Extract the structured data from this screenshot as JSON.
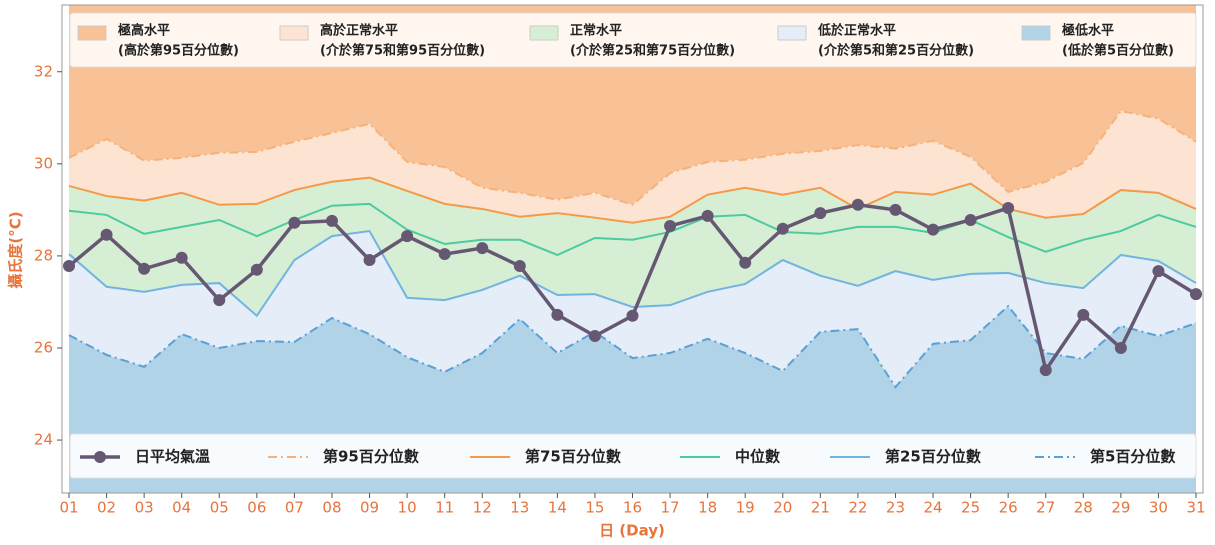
{
  "chart_data": {
    "type": "line",
    "xlabel": "日 (Day)",
    "ylabel": "攝氏度(°C)",
    "categories": [
      "01",
      "02",
      "03",
      "04",
      "05",
      "06",
      "07",
      "08",
      "09",
      "10",
      "11",
      "12",
      "13",
      "14",
      "15",
      "16",
      "17",
      "18",
      "19",
      "20",
      "21",
      "22",
      "23",
      "24",
      "25",
      "26",
      "27",
      "28",
      "29",
      "30",
      "31"
    ],
    "ylim": [
      22.85,
      33.45
    ],
    "yticks": [
      24,
      26,
      28,
      30,
      32
    ],
    "series": [
      {
        "name": "日平均氣溫",
        "color": "#665873",
        "dash": "solid",
        "marker": true,
        "values": [
          27.78,
          28.46,
          27.72,
          27.96,
          27.04,
          27.7,
          28.72,
          28.76,
          27.91,
          28.43,
          28.04,
          28.17,
          27.78,
          26.72,
          26.26,
          26.7,
          28.65,
          28.87,
          27.85,
          28.59,
          28.93,
          29.11,
          29.0,
          28.57,
          28.78,
          29.04,
          25.52,
          26.72,
          26.0,
          27.67,
          27.17
        ]
      },
      {
        "name": "第95百分位數",
        "color": "#f5b27a",
        "dash": "dashdot",
        "marker": false,
        "values": [
          30.13,
          30.54,
          30.07,
          30.13,
          30.24,
          30.26,
          30.48,
          30.67,
          30.87,
          30.04,
          29.93,
          29.48,
          29.37,
          29.22,
          29.37,
          29.11,
          29.8,
          30.04,
          30.09,
          30.22,
          30.28,
          30.41,
          30.33,
          30.5,
          30.15,
          29.39,
          29.61,
          30.02,
          31.15,
          30.98,
          30.48
        ]
      },
      {
        "name": "第75百分位數",
        "color": "#f39a4a",
        "dash": "solid",
        "marker": false,
        "values": [
          29.52,
          29.3,
          29.2,
          29.37,
          29.11,
          29.13,
          29.43,
          29.61,
          29.7,
          29.41,
          29.13,
          29.02,
          28.85,
          28.93,
          28.83,
          28.72,
          28.85,
          29.33,
          29.48,
          29.33,
          29.48,
          29.02,
          29.39,
          29.33,
          29.57,
          29.02,
          28.83,
          28.91,
          29.43,
          29.37,
          29.02
        ]
      },
      {
        "name": "中位數",
        "color": "#4ccaa0",
        "dash": "solid",
        "marker": false,
        "values": [
          28.98,
          28.89,
          28.48,
          28.63,
          28.78,
          28.43,
          28.78,
          29.09,
          29.13,
          28.57,
          28.26,
          28.35,
          28.35,
          28.02,
          28.39,
          28.35,
          28.52,
          28.85,
          28.89,
          28.52,
          28.48,
          28.63,
          28.63,
          28.5,
          28.78,
          28.41,
          28.09,
          28.35,
          28.54,
          28.89,
          28.63
        ]
      },
      {
        "name": "第25百分位數",
        "color": "#72b4e0",
        "dash": "solid",
        "marker": false,
        "values": [
          28.04,
          27.33,
          27.22,
          27.37,
          27.41,
          26.7,
          27.91,
          28.43,
          28.54,
          27.09,
          27.04,
          27.26,
          27.57,
          27.15,
          27.17,
          26.89,
          26.93,
          27.22,
          27.39,
          27.91,
          27.57,
          27.35,
          27.67,
          27.48,
          27.61,
          27.63,
          27.41,
          27.3,
          28.02,
          27.89,
          27.41
        ]
      },
      {
        "name": "第5百分位數",
        "color": "#5a9fd6",
        "dash": "dashdot",
        "marker": false,
        "values": [
          26.28,
          25.85,
          25.59,
          26.3,
          26.0,
          26.15,
          26.13,
          26.65,
          26.3,
          25.8,
          25.48,
          25.89,
          26.63,
          25.89,
          26.35,
          25.78,
          25.89,
          26.2,
          25.89,
          25.5,
          26.35,
          26.41,
          25.15,
          26.09,
          26.17,
          26.91,
          25.89,
          25.76,
          26.48,
          26.26,
          26.54
        ]
      }
    ],
    "bands": [
      {
        "name": "極高水平",
        "desc": "(高於第95百分位數)",
        "color": "#f8c196"
      },
      {
        "name": "高於正常水平",
        "desc": "(介於第75和第95百分位數)",
        "color": "#fde3d2"
      },
      {
        "name": "正常水平",
        "desc": "(介於第25和第75百分位數)",
        "color": "#d6efd4"
      },
      {
        "name": "低於正常水平",
        "desc": "(介於第5和第25百分位數)",
        "color": "#e4edf8"
      },
      {
        "name": "極低水平",
        "desc": "(低於第5百分位數)",
        "color": "#b0d3e8"
      }
    ]
  }
}
